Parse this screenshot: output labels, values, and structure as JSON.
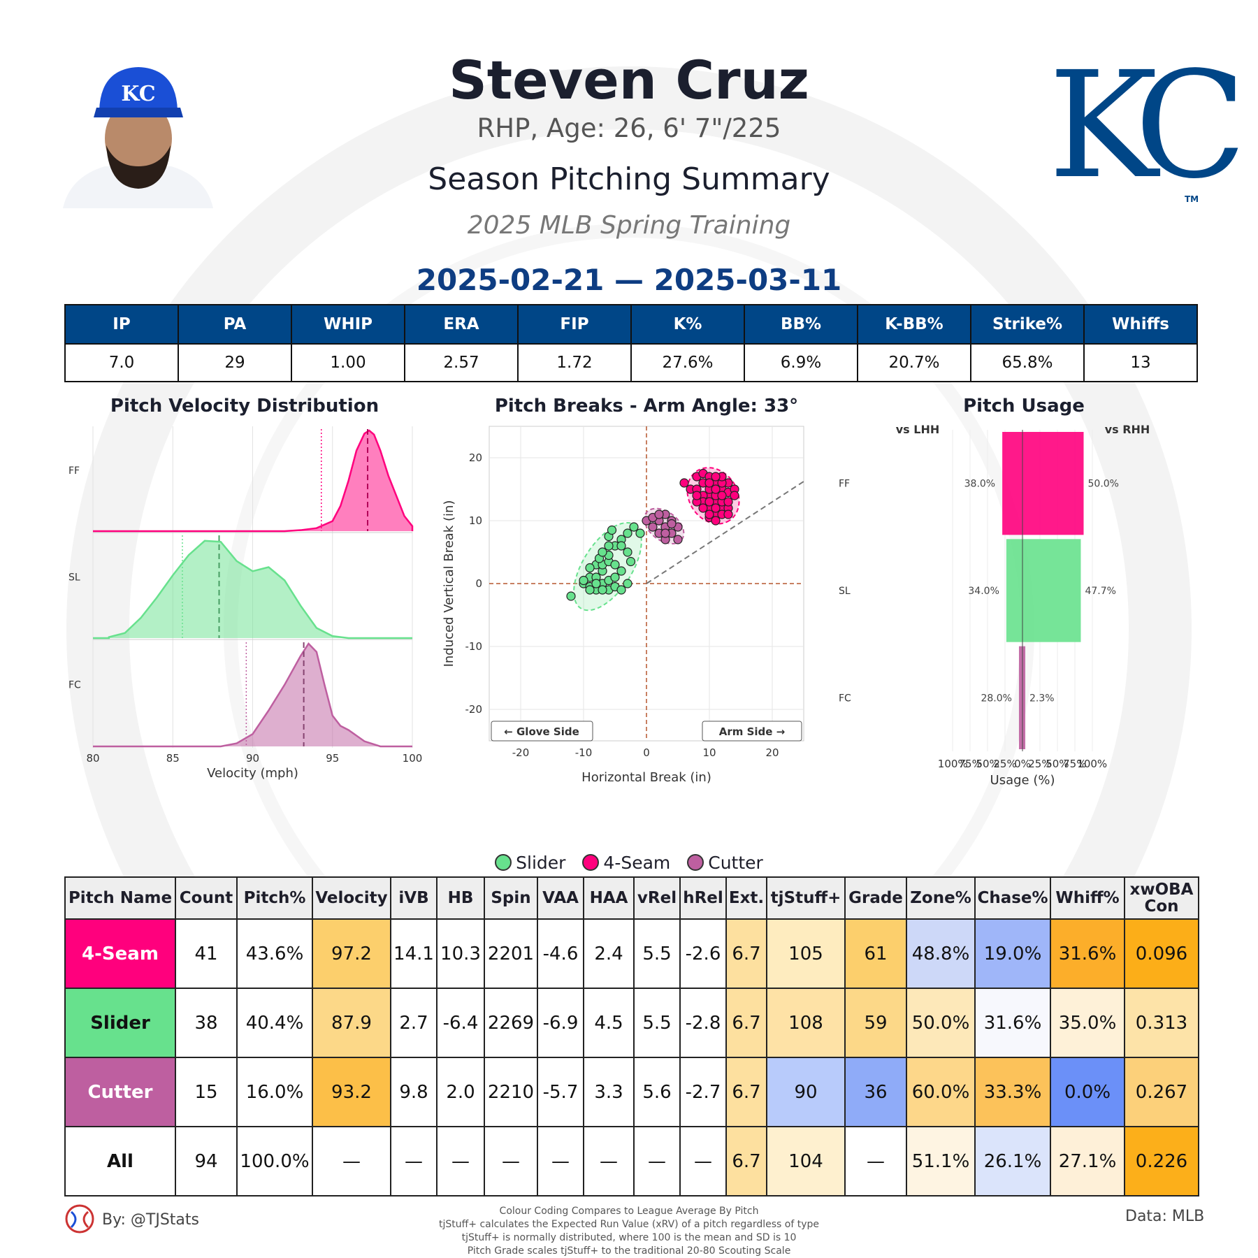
{
  "header": {
    "name": "Steven Cruz",
    "bio": "RHP, Age: 26, 6' 7\"/225",
    "subtitle": "Season Pitching Summary",
    "event": "2025 MLB Spring Training",
    "date_range": "2025-02-21 — 2025-03-11",
    "logo_text": "KC",
    "logo_tm": "TM",
    "cap_logo_text": "KC",
    "logo_color": "#004687"
  },
  "stats": {
    "headers": [
      "IP",
      "PA",
      "WHIP",
      "ERA",
      "FIP",
      "K%",
      "BB%",
      "K-BB%",
      "Strike%",
      "Whiffs"
    ],
    "values": [
      "7.0",
      "29",
      "1.00",
      "2.57",
      "1.72",
      "27.6%",
      "6.9%",
      "20.7%",
      "65.8%",
      "13"
    ]
  },
  "pitch_colors": {
    "FF": "#ff007d",
    "SL": "#67e18d",
    "FC": "#be5fa0"
  },
  "chart_data": [
    {
      "type": "area",
      "title": "Pitch Velocity Distribution",
      "xlabel": "Velocity (mph)",
      "ylabel": "",
      "xlim": [
        80,
        100
      ],
      "xticks": [
        "80",
        "85",
        "90",
        "95",
        "100"
      ],
      "series": [
        {
          "name": "FF",
          "x": [
            92,
            93,
            94,
            95,
            95.5,
            96,
            96.5,
            97,
            97.3,
            97.6,
            98,
            98.5,
            99,
            99.5,
            100
          ],
          "y": [
            0,
            0.01,
            0.03,
            0.1,
            0.25,
            0.5,
            0.8,
            0.97,
            1,
            0.96,
            0.8,
            0.55,
            0.35,
            0.15,
            0.05
          ],
          "mean": 97.2,
          "league_mean": 94.3
        },
        {
          "name": "SL",
          "x": [
            81,
            82,
            83,
            84,
            85,
            86,
            87,
            88,
            89,
            90,
            91,
            92,
            93,
            94,
            95,
            96
          ],
          "y": [
            0.01,
            0.05,
            0.2,
            0.4,
            0.62,
            0.82,
            0.96,
            0.95,
            0.76,
            0.66,
            0.7,
            0.57,
            0.32,
            0.1,
            0.02,
            0
          ],
          "mean": 87.9,
          "league_mean": 85.6
        },
        {
          "name": "FC",
          "x": [
            88,
            89,
            90,
            91,
            92,
            93,
            93.5,
            94,
            94.5,
            95,
            95.5,
            96,
            97,
            98
          ],
          "y": [
            0,
            0.03,
            0.12,
            0.35,
            0.6,
            0.88,
            1,
            0.92,
            0.6,
            0.3,
            0.2,
            0.16,
            0.05,
            0
          ],
          "mean": 93.2,
          "league_mean": 89.6
        }
      ]
    },
    {
      "type": "scatter",
      "title": "Pitch Breaks - Arm Angle: 33°",
      "xlabel": "Horizontal Break (in)",
      "ylabel": "Induced Vertical Break (in)",
      "xlim": [
        -25,
        25
      ],
      "ylim": [
        -25,
        25
      ],
      "xticks": [
        "-20",
        "-10",
        "0",
        "10",
        "20"
      ],
      "yticks": [
        "20",
        "10",
        "0",
        "-10",
        "-20"
      ],
      "arm_angle": 33,
      "annotations": [
        "← Glove Side",
        "Arm Side →"
      ],
      "series": [
        {
          "name": "SL",
          "points": [
            [
              -12,
              -2
            ],
            [
              -10,
              0
            ],
            [
              -9,
              1
            ],
            [
              -8,
              -1
            ],
            [
              -7,
              0
            ],
            [
              -9,
              -0.5
            ],
            [
              -8,
              1
            ],
            [
              -6,
              -1
            ],
            [
              -5,
              -0.5
            ],
            [
              -7,
              2
            ],
            [
              -8,
              3
            ],
            [
              -7,
              3
            ],
            [
              -6,
              3.5
            ],
            [
              -7.5,
              4
            ],
            [
              -5,
              3
            ],
            [
              -6,
              4.5
            ],
            [
              -7,
              5
            ],
            [
              -5,
              6
            ],
            [
              -4,
              7
            ],
            [
              -6,
              7.5
            ],
            [
              -5.5,
              8.5
            ],
            [
              -3,
              8
            ],
            [
              -4,
              6
            ],
            [
              -2,
              9
            ],
            [
              -1,
              8
            ],
            [
              -3,
              5
            ],
            [
              -2.5,
              3.5
            ],
            [
              -4,
              2
            ],
            [
              -3,
              0
            ],
            [
              -9,
              -1
            ],
            [
              -10,
              0.5
            ],
            [
              -8,
              0
            ],
            [
              -6,
              0.5
            ],
            [
              -7,
              -1
            ],
            [
              -4,
              -1
            ],
            [
              -5,
              1
            ],
            [
              -9,
              2.5
            ],
            [
              -6,
              6
            ]
          ]
        },
        {
          "name": "FF",
          "points": [
            [
              6,
              16
            ],
            [
              7,
              15
            ],
            [
              8,
              17
            ],
            [
              9,
              17.5
            ],
            [
              10,
              17
            ],
            [
              11,
              16
            ],
            [
              12,
              15
            ],
            [
              13,
              14.5
            ],
            [
              14,
              15
            ],
            [
              10,
              14
            ],
            [
              9,
              14
            ],
            [
              8,
              15
            ],
            [
              10,
              12
            ],
            [
              11,
              13
            ],
            [
              12,
              12
            ],
            [
              11,
              11
            ],
            [
              10,
              10.5
            ],
            [
              13,
              12
            ],
            [
              12,
              11
            ],
            [
              9,
              13
            ],
            [
              11,
              14
            ],
            [
              12,
              13
            ],
            [
              13,
              13
            ],
            [
              10,
              15
            ],
            [
              11,
              15
            ],
            [
              9,
              12
            ],
            [
              8,
              13
            ],
            [
              12,
              14
            ],
            [
              13,
              16
            ],
            [
              11,
              12
            ],
            [
              10,
              13
            ],
            [
              12,
              16
            ],
            [
              14,
              14
            ],
            [
              11,
              10
            ],
            [
              9,
              16
            ],
            [
              10,
              16
            ],
            [
              13,
              11
            ],
            [
              12,
              17
            ],
            [
              11,
              17
            ],
            [
              10,
              11
            ],
            [
              8,
              14
            ]
          ]
        },
        {
          "name": "FC",
          "points": [
            [
              0,
              10
            ],
            [
              1,
              9
            ],
            [
              2,
              10
            ],
            [
              3,
              9
            ],
            [
              4,
              10
            ],
            [
              5,
              9
            ],
            [
              3,
              11
            ],
            [
              2,
              8
            ],
            [
              4,
              8
            ],
            [
              3,
              7
            ],
            [
              5,
              7
            ],
            [
              1,
              10.5
            ],
            [
              2,
              11
            ],
            [
              4,
              9.5
            ],
            [
              3,
              8
            ]
          ]
        }
      ]
    },
    {
      "type": "bar",
      "title": "Pitch Usage",
      "xlabel": "Usage (%)",
      "ylabel": "",
      "left_label": "vs LHH",
      "right_label": "vs RHH",
      "categories": [
        "FF",
        "SL",
        "FC"
      ],
      "xticks": [
        "100%",
        "75%",
        "50%",
        "25%",
        "0%",
        "25%",
        "50%",
        "75%",
        "100%"
      ],
      "series": [
        {
          "name": "vs LHH",
          "values": [
            38.0,
            34.0,
            28.0
          ],
          "labels": [
            "38.0%",
            "34.0%",
            "28.0%"
          ]
        },
        {
          "name": "vs RHH",
          "values": [
            50.0,
            47.7,
            2.3
          ],
          "labels": [
            "50.0%",
            "47.7%",
            "2.3%"
          ]
        }
      ]
    }
  ],
  "legend": [
    {
      "name": "Slider",
      "color": "#67e18d"
    },
    {
      "name": "4-Seam",
      "color": "#ff007d"
    },
    {
      "name": "Cutter",
      "color": "#be5fa0"
    }
  ],
  "pitch_table": {
    "headers": [
      "Pitch Name",
      "Count",
      "Pitch%",
      "Velocity",
      "iVB",
      "HB",
      "Spin",
      "VAA",
      "HAA",
      "vRel",
      "hRel",
      "Ext.",
      "tjStuff+",
      "Grade",
      "Zone%",
      "Chase%",
      "Whiff%",
      "xwOBA Con"
    ],
    "rows": [
      {
        "name": "4-Seam",
        "name_bg": "#ff007d",
        "name_color": "#ffffff",
        "cells": [
          "41",
          "43.6%",
          "97.2",
          "14.1",
          "10.3",
          "2201",
          "-4.6",
          "2.4",
          "5.5",
          "-2.6",
          "6.7",
          "105",
          "61",
          "48.8%",
          "19.0%",
          "31.6%",
          "0.096"
        ],
        "bgs": [
          "#ffffff",
          "#ffffff",
          "#fccf6c",
          "#ffffff",
          "#ffffff",
          "#ffffff",
          "#ffffff",
          "#ffffff",
          "#ffffff",
          "#ffffff",
          "#fde09f",
          "#feecbf",
          "#fccf6c",
          "#cdd8f8",
          "#9fb6f9",
          "#fcae2a",
          "#fcae18"
        ]
      },
      {
        "name": "Slider",
        "name_bg": "#67e18d",
        "name_color": "#111111",
        "cells": [
          "38",
          "40.4%",
          "87.9",
          "2.7",
          "-6.4",
          "2269",
          "-6.9",
          "4.5",
          "5.5",
          "-2.8",
          "6.7",
          "108",
          "59",
          "50.0%",
          "31.6%",
          "35.0%",
          "0.313"
        ],
        "bgs": [
          "#ffffff",
          "#ffffff",
          "#fcd888",
          "#ffffff",
          "#ffffff",
          "#ffffff",
          "#ffffff",
          "#ffffff",
          "#ffffff",
          "#ffffff",
          "#fde09f",
          "#fee2a6",
          "#fcd888",
          "#fde8b9",
          "#f7f8fd",
          "#fef1d8",
          "#fde3a8"
        ]
      },
      {
        "name": "Cutter",
        "name_bg": "#be5fa0",
        "name_color": "#ffffff",
        "cells": [
          "15",
          "16.0%",
          "93.2",
          "9.8",
          "2.0",
          "2210",
          "-5.7",
          "3.3",
          "5.6",
          "-2.7",
          "6.7",
          "90",
          "36",
          "60.0%",
          "33.3%",
          "0.0%",
          "0.267"
        ],
        "bgs": [
          "#ffffff",
          "#ffffff",
          "#fcbf48",
          "#ffffff",
          "#ffffff",
          "#ffffff",
          "#ffffff",
          "#ffffff",
          "#ffffff",
          "#ffffff",
          "#fde09f",
          "#b8cbfb",
          "#8fabf8",
          "#fdd78a",
          "#fcc25a",
          "#6b90f8",
          "#fcd07a"
        ]
      },
      {
        "name": "All",
        "name_bg": "#ffffff",
        "name_color": "#111111",
        "cells": [
          "94",
          "100.0%",
          "—",
          "—",
          "—",
          "—",
          "—",
          "—",
          "—",
          "—",
          "6.7",
          "104",
          "—",
          "51.1%",
          "26.1%",
          "27.1%",
          "0.226"
        ],
        "bgs": [
          "#ffffff",
          "#ffffff",
          "#ffffff",
          "#ffffff",
          "#ffffff",
          "#ffffff",
          "#ffffff",
          "#ffffff",
          "#ffffff",
          "#ffffff",
          "#fde09f",
          "#fef0cf",
          "#ffffff",
          "#fef4e2",
          "#dbe4fb",
          "#fef0d8",
          "#fcaf1a"
        ]
      }
    ]
  },
  "footer": {
    "byline": "By: @TJStats",
    "data_source": "Data: MLB",
    "notes": [
      "Colour Coding Compares to League Average By Pitch",
      "tjStuff+ calculates the Expected Run Value (xRV) of a pitch regardless of type",
      "tjStuff+ is normally distributed, where 100 is the mean and SD is 10",
      "Pitch Grade scales tjStuff+ to the traditional 20-80 Scouting Scale"
    ]
  }
}
